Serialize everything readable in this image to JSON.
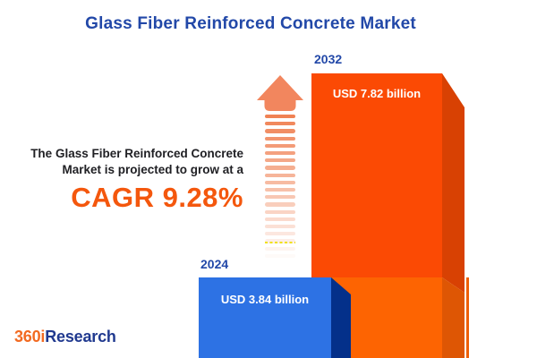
{
  "title": "Glass Fiber Reinforced Concrete Market",
  "annotation": {
    "line1": "The Glass Fiber Reinforced Concrete",
    "line2": "Market is projected to grow at a",
    "cagr_label": "CAGR 9.28%"
  },
  "chart_data": {
    "type": "bar",
    "title": "Glass Fiber Reinforced Concrete Market",
    "unit": "USD billion",
    "categories": [
      "2024",
      "2032"
    ],
    "values": [
      3.84,
      7.82
    ],
    "value_labels": [
      "USD 3.84 billion",
      "USD 7.82 billion"
    ],
    "cagr_percent": 9.28,
    "bar_colors": [
      "#2D72E4",
      "#FB4A04"
    ],
    "legend": "none",
    "axes": "none",
    "style": "3d-bars-with-growth-arrow"
  },
  "logo": {
    "part1": "360i",
    "part2": "Research"
  },
  "colors": {
    "background": "#FFFFFF",
    "accent_blue": "#2248A8",
    "text_dark": "#202024",
    "cagr_orange": "#F4570D",
    "bar2032_front_top": "#FB4A04",
    "bar2032_front_bottom": "#FD6402",
    "bar2032_side_top": "#D84103",
    "bar2032_side_bottom": "#DE5604",
    "bar2032_edge_line": "#EE5F04",
    "bar2024_front": "#2D72E4",
    "bar2024_side": "#04308A",
    "value_text": "#FFFFFF",
    "arrow_head": "#F2865E",
    "arrow_stripe": "#EF7B4B",
    "highlight_yellow": "#F0E112",
    "logo_orange": "#F26A21",
    "logo_blue": "#20398F"
  },
  "arrow": {
    "stripe_count": 20,
    "stripe_step": 8.2,
    "stripe_height": 4.2,
    "fade_start": 0.95,
    "fade_per_stripe": 0.048
  }
}
